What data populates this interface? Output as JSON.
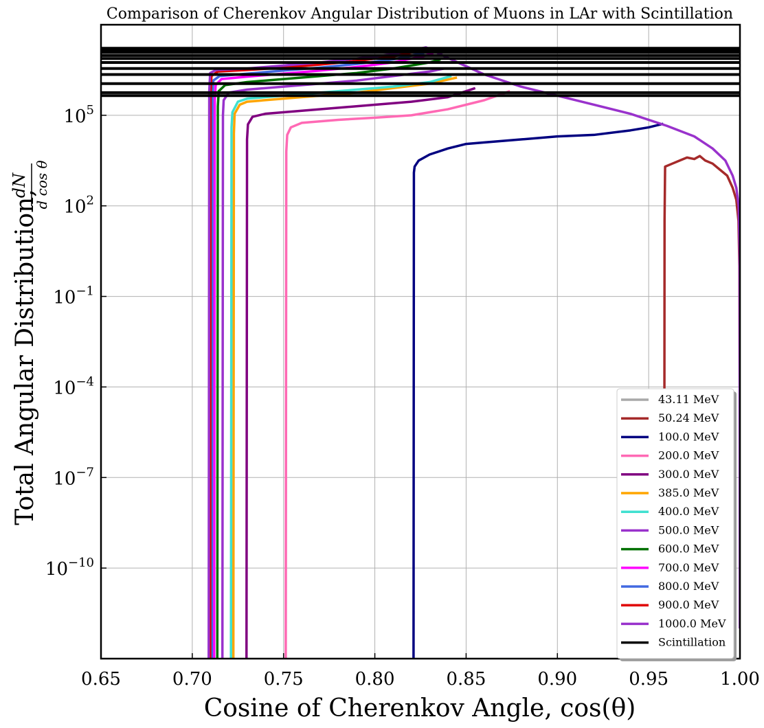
{
  "chart_data": {
    "type": "line",
    "title": "Comparison of Cherenkov Angular Distribution of Muons in LAr with Scintillation",
    "xlabel": "Cosine of Cherenkov Angle, cos(θ)",
    "ylabel": "Total Angular Distribution,",
    "ylabel_fraction": {
      "numerator": "dN",
      "denominator": "d cos θ"
    },
    "xlim": [
      0.65,
      1.0
    ],
    "ylim_log10": [
      -13,
      8
    ],
    "yscale": "log",
    "grid": true,
    "legend_position": "lower-right",
    "x_ticks": [
      "0.65",
      "0.70",
      "0.75",
      "0.80",
      "0.85",
      "0.90",
      "0.95",
      "1.00"
    ],
    "y_ticks": [
      {
        "base": "10",
        "exp": "5",
        "log10": 5
      },
      {
        "base": "10",
        "exp": "2",
        "log10": 2
      },
      {
        "base": "10",
        "exp": "−1",
        "log10": -1
      },
      {
        "base": "10",
        "exp": "−4",
        "log10": -4
      },
      {
        "base": "10",
        "exp": "−7",
        "log10": -7
      },
      {
        "base": "10",
        "exp": "−10",
        "log10": -10
      }
    ],
    "series": [
      {
        "name": "43.11 MeV",
        "color": "#a9a9a9",
        "x": [],
        "log10_y": []
      },
      {
        "name": "50.24 MeV",
        "color": "#a52a2a",
        "x": [
          0.9585,
          0.9587,
          0.959,
          0.963,
          0.967,
          0.971,
          0.975,
          0.978,
          0.981,
          0.985,
          0.989,
          0.993,
          0.996,
          0.998,
          0.9992,
          0.9997,
          0.9999
        ],
        "log10_y": [
          -13,
          1.5,
          3.3,
          3.4,
          3.5,
          3.6,
          3.55,
          3.65,
          3.5,
          3.4,
          3.2,
          3.0,
          2.6,
          2.2,
          1.5,
          0,
          -4
        ]
      },
      {
        "name": "100.0 MeV",
        "color": "#000080",
        "x": [
          0.8212,
          0.8214,
          0.8218,
          0.824,
          0.83,
          0.84,
          0.85,
          0.86,
          0.88,
          0.9,
          0.92,
          0.94,
          0.95,
          0.958
        ],
        "log10_y": [
          -13,
          3.1,
          3.3,
          3.5,
          3.7,
          3.9,
          4.05,
          4.1,
          4.2,
          4.3,
          4.35,
          4.5,
          4.6,
          4.72
        ]
      },
      {
        "name": "200.0 MeV",
        "color": "#ff69b4",
        "x": [
          0.7512,
          0.7515,
          0.752,
          0.754,
          0.76,
          0.78,
          0.8,
          0.82,
          0.84,
          0.86,
          0.874
        ],
        "log10_y": [
          -13,
          3.8,
          4.35,
          4.6,
          4.75,
          4.85,
          4.92,
          5.0,
          5.2,
          5.5,
          5.8
        ]
      },
      {
        "name": "300.0 MeV",
        "color": "#800080",
        "x": [
          0.7297,
          0.73,
          0.7305,
          0.733,
          0.74,
          0.76,
          0.78,
          0.8,
          0.82,
          0.84,
          0.855
        ],
        "log10_y": [
          -13,
          4.2,
          4.7,
          4.95,
          5.05,
          5.15,
          5.25,
          5.35,
          5.45,
          5.6,
          5.9
        ]
      },
      {
        "name": "385.0 MeV",
        "color": "#ffa500",
        "x": [
          0.7225,
          0.7228,
          0.7232,
          0.726,
          0.73,
          0.75,
          0.77,
          0.79,
          0.81,
          0.83,
          0.845
        ],
        "log10_y": [
          -13,
          4.4,
          5.05,
          5.35,
          5.45,
          5.55,
          5.65,
          5.75,
          5.9,
          6.05,
          6.25
        ]
      },
      {
        "name": "400.0 MeV",
        "color": "#40e0d0",
        "x": [
          0.7212,
          0.7215,
          0.722,
          0.725,
          0.73,
          0.75,
          0.77,
          0.79,
          0.81,
          0.83,
          0.842
        ],
        "log10_y": [
          -13,
          4.6,
          5.1,
          5.45,
          5.55,
          5.65,
          5.75,
          5.85,
          5.95,
          6.1,
          6.3
        ]
      },
      {
        "name": "500.0 MeV",
        "color": "#9932cc",
        "x": [
          0.7165,
          0.7168,
          0.7172,
          0.72,
          0.73,
          0.75,
          0.77,
          0.79,
          0.81,
          0.83,
          0.838
        ],
        "log10_y": [
          -13,
          5.0,
          5.5,
          5.75,
          5.85,
          5.95,
          6.05,
          6.15,
          6.3,
          6.45,
          6.55
        ]
      },
      {
        "name": "600.0 MeV",
        "color": "#007000",
        "x": [
          0.7137,
          0.714,
          0.7145,
          0.718,
          0.73,
          0.75,
          0.77,
          0.79,
          0.81,
          0.83,
          0.836
        ],
        "log10_y": [
          -13,
          5.3,
          5.8,
          6.0,
          6.1,
          6.2,
          6.3,
          6.4,
          6.55,
          6.75,
          6.85
        ]
      },
      {
        "name": "700.0 MeV",
        "color": "#ff00ff",
        "x": [
          0.712,
          0.7123,
          0.7128,
          0.716,
          0.73,
          0.75,
          0.77,
          0.79,
          0.81,
          0.826,
          0.832
        ],
        "log10_y": [
          -13,
          5.5,
          6.0,
          6.2,
          6.28,
          6.38,
          6.48,
          6.6,
          6.75,
          6.95,
          7.05
        ]
      },
      {
        "name": "800.0 MeV",
        "color": "#4169e1",
        "x": [
          0.7107,
          0.711,
          0.7115,
          0.715,
          0.73,
          0.75,
          0.77,
          0.79,
          0.81,
          0.826,
          0.83
        ],
        "log10_y": [
          -13,
          5.6,
          6.15,
          6.3,
          6.38,
          6.48,
          6.58,
          6.7,
          6.85,
          7.05,
          7.12
        ]
      },
      {
        "name": "900.0 MeV",
        "color": "#e00000",
        "x": [
          0.7098,
          0.71,
          0.7105,
          0.714,
          0.73,
          0.75,
          0.77,
          0.79,
          0.81,
          0.826,
          0.829
        ],
        "log10_y": [
          -13,
          5.7,
          6.3,
          6.45,
          6.5,
          6.58,
          6.68,
          6.8,
          6.95,
          7.15,
          7.2
        ]
      },
      {
        "name": "1000.0 MeV",
        "color": "#9932cc",
        "x": [
          0.709,
          0.7093,
          0.7098,
          0.713,
          0.73,
          0.75,
          0.77,
          0.79,
          0.81,
          0.824,
          0.828,
          0.84,
          0.86,
          0.88,
          0.9,
          0.92,
          0.94,
          0.96,
          0.975,
          0.985,
          0.992,
          0.996,
          0.998,
          0.9993,
          0.9998,
          0.99995
        ],
        "log10_y": [
          -13,
          5.8,
          6.4,
          6.5,
          6.55,
          6.65,
          6.75,
          6.88,
          7.02,
          7.2,
          7.25,
          6.9,
          6.35,
          5.95,
          5.65,
          5.35,
          5.05,
          4.65,
          4.3,
          3.9,
          3.5,
          3.0,
          2.6,
          2.0,
          0.5,
          -12
        ]
      },
      {
        "name": "Scintillation",
        "color": "#000000",
        "levels_log10": [
          5.65,
          5.75,
          6.05,
          6.35,
          6.55,
          6.75,
          6.88,
          6.98,
          7.08,
          7.15,
          7.22
        ]
      }
    ]
  }
}
